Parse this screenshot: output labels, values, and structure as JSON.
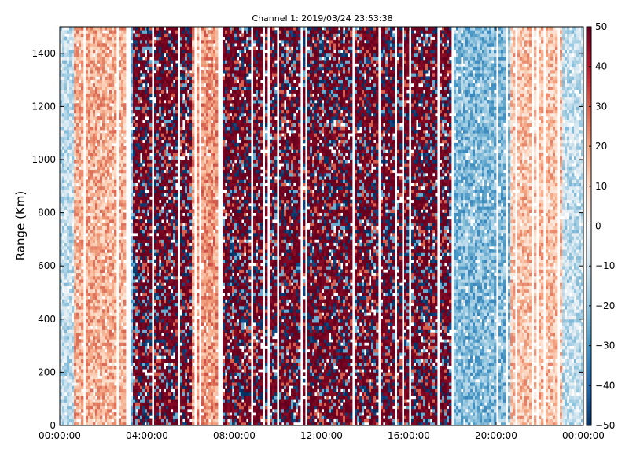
{
  "chart_data": {
    "type": "heatmap",
    "title": "Channel 1: 2019/03/24 23:53:38",
    "xlabel": "",
    "ylabel": "Range (Km)",
    "x_ticks": [
      "00:00:00",
      "04:00:00",
      "08:00:00",
      "12:00:00",
      "16:00:00",
      "20:00:00",
      "00:00:00"
    ],
    "xlim_hours": [
      0,
      24
    ],
    "y_ticks": [
      0,
      200,
      400,
      600,
      800,
      1000,
      1200,
      1400
    ],
    "ylim": [
      0,
      1500
    ],
    "colorbar": {
      "colormap": "RdBu_r",
      "ticks": [
        50,
        40,
        30,
        20,
        10,
        0,
        -10,
        -20,
        -30,
        -40,
        -50
      ],
      "range": [
        -50,
        50
      ],
      "colors": {
        "low": "#053061",
        "mid": "#f7f7f7",
        "high": "#67001f"
      }
    },
    "grid": false,
    "legend": "none",
    "value_regions": [
      {
        "hours": [
          0.0,
          0.7
        ],
        "mean": -12,
        "character": "light blue / white, sparse"
      },
      {
        "hours": [
          0.7,
          3.1
        ],
        "mean": 18,
        "character": "light red/salmon, smooth"
      },
      {
        "hours": [
          3.1,
          3.4
        ],
        "mean": -22,
        "character": "blue strip"
      },
      {
        "hours": [
          3.4,
          6.1
        ],
        "mean": 35,
        "character": "dark red with blue noise"
      },
      {
        "hours": [
          6.1,
          7.4
        ],
        "mean": 22,
        "character": "salmon band"
      },
      {
        "hours": [
          7.4,
          17.9
        ],
        "mean": 40,
        "character": "dark red / blue speckle noise"
      },
      {
        "hours": [
          17.9,
          20.7
        ],
        "mean": -22,
        "character": "light blue smooth"
      },
      {
        "hours": [
          20.7,
          23.0
        ],
        "mean": 15,
        "character": "light red"
      },
      {
        "hours": [
          23.0,
          24.0
        ],
        "mean": -12,
        "character": "light blue / white"
      }
    ]
  }
}
